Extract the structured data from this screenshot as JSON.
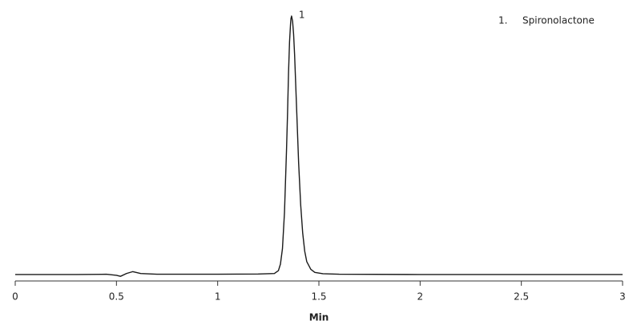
{
  "chart_data": {
    "type": "line",
    "x_label": "Min",
    "xlim": [
      0,
      3
    ],
    "xticks": [
      0,
      0.5,
      1,
      1.5,
      2,
      2.5,
      3
    ],
    "ylim": [
      -2.5,
      100
    ],
    "series": [
      {
        "name": "Spironolactone",
        "number": "1.",
        "peak_label": "1",
        "peak_index": 22,
        "color": "#1a1a1a",
        "x": [
          0,
          0.3,
          0.45,
          0.5,
          0.52,
          0.55,
          0.58,
          0.62,
          0.7,
          1.0,
          1.2,
          1.28,
          1.3,
          1.31,
          1.32,
          1.33,
          1.34,
          1.345,
          1.35,
          1.355,
          1.36,
          1.362,
          1.365,
          1.37,
          1.375,
          1.38,
          1.39,
          1.4,
          1.41,
          1.42,
          1.43,
          1.44,
          1.46,
          1.48,
          1.52,
          1.6,
          2.0,
          3.0
        ],
        "values": [
          0,
          0,
          0.1,
          -0.3,
          -0.7,
          0.4,
          1.1,
          0.4,
          0.1,
          0.1,
          0.2,
          0.4,
          1.5,
          4,
          10,
          24,
          48,
          62,
          78,
          90,
          97,
          99,
          100,
          98,
          93,
          85,
          64,
          43,
          27,
          16,
          9,
          5,
          2,
          0.8,
          0.3,
          0.1,
          0,
          0
        ]
      }
    ]
  }
}
